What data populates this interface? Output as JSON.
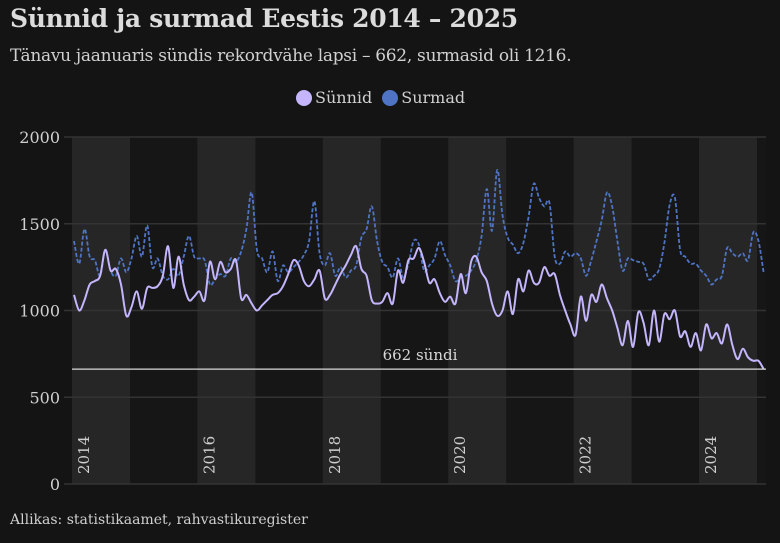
{
  "title": "Sünnid ja surmad Eestis 2014 – 2025",
  "subtitle": "Tänavu jaanuaris sündis rekordvähe lapsi – 662, surmasid oli 1216.",
  "source": "Allikas: statistikaamet, rahvastikuregister",
  "colors": {
    "births": "#c4b5fd",
    "deaths": "#4f74c4",
    "background": "#141414",
    "band": "#262626"
  },
  "chart_data": {
    "type": "line",
    "title": "Sünnid ja surmad Eestis 2014 – 2025",
    "xlabel": "",
    "ylabel": "",
    "ylim": [
      0,
      2000
    ],
    "xlim": [
      2014,
      2025.1
    ],
    "yticks": [
      "0",
      "500",
      "1000",
      "1500",
      "2000"
    ],
    "ytick_values": [
      0,
      500,
      1000,
      1500,
      2000
    ],
    "xticks": [
      "2014",
      "2016",
      "2018",
      "2020",
      "2022",
      "2024"
    ],
    "xtick_values": [
      2014,
      2016,
      2018,
      2020,
      2022,
      2024
    ],
    "legend": {
      "position": "top-center",
      "entries": [
        "Sünnid",
        "Surmad"
      ]
    },
    "annotation": {
      "text": "662 sündi",
      "value": 662
    },
    "x_start": "2014-01",
    "frequency": "monthly",
    "series": [
      {
        "name": "Sünnid",
        "style": "solid",
        "values": [
          1090,
          1000,
          1060,
          1150,
          1170,
          1200,
          1350,
          1230,
          1240,
          1150,
          970,
          1020,
          1110,
          1010,
          1130,
          1130,
          1140,
          1200,
          1370,
          1130,
          1310,
          1150,
          1060,
          1080,
          1110,
          1060,
          1280,
          1180,
          1280,
          1220,
          1240,
          1290,
          1070,
          1090,
          1040,
          1000,
          1030,
          1060,
          1090,
          1100,
          1140,
          1210,
          1290,
          1260,
          1170,
          1140,
          1180,
          1230,
          1070,
          1090,
          1150,
          1210,
          1260,
          1320,
          1370,
          1240,
          1200,
          1060,
          1040,
          1050,
          1100,
          1040,
          1230,
          1160,
          1290,
          1300,
          1360,
          1280,
          1160,
          1180,
          1100,
          1050,
          1080,
          1040,
          1210,
          1100,
          1280,
          1310,
          1220,
          1170,
          1040,
          970,
          1000,
          1110,
          980,
          1180,
          1110,
          1230,
          1160,
          1160,
          1250,
          1200,
          1210,
          1090,
          1000,
          920,
          860,
          1080,
          940,
          1090,
          1050,
          1150,
          1070,
          1000,
          900,
          800,
          940,
          790,
          990,
          930,
          800,
          1000,
          820,
          980,
          950,
          1000,
          850,
          880,
          790,
          870,
          770,
          920,
          840,
          870,
          810,
          920,
          800,
          720,
          780,
          730,
          710,
          710,
          662
        ]
      },
      {
        "name": "Surmad",
        "style": "dashed",
        "values": [
          1400,
          1270,
          1470,
          1310,
          1290,
          1200,
          1350,
          1230,
          1200,
          1300,
          1220,
          1300,
          1430,
          1310,
          1490,
          1250,
          1300,
          1200,
          1180,
          1240,
          1200,
          1310,
          1430,
          1310,
          1300,
          1290,
          1150,
          1180,
          1210,
          1200,
          1300,
          1280,
          1340,
          1470,
          1680,
          1350,
          1300,
          1220,
          1340,
          1170,
          1260,
          1220,
          1250,
          1280,
          1320,
          1400,
          1630,
          1330,
          1260,
          1330,
          1200,
          1250,
          1190,
          1230,
          1260,
          1420,
          1470,
          1600,
          1400,
          1280,
          1250,
          1190,
          1300,
          1190,
          1270,
          1400,
          1380,
          1230,
          1260,
          1300,
          1400,
          1320,
          1260,
          1170,
          1190,
          1200,
          1230,
          1290,
          1430,
          1700,
          1460,
          1810,
          1550,
          1420,
          1380,
          1330,
          1390,
          1540,
          1730,
          1650,
          1600,
          1620,
          1310,
          1270,
          1340,
          1310,
          1330,
          1300,
          1200,
          1290,
          1400,
          1520,
          1680,
          1600,
          1400,
          1230,
          1300,
          1290,
          1280,
          1270,
          1180,
          1200,
          1240,
          1390,
          1610,
          1650,
          1350,
          1310,
          1270,
          1270,
          1230,
          1200,
          1150,
          1180,
          1200,
          1360,
          1330,
          1310,
          1330,
          1290,
          1450,
          1400,
          1216
        ]
      }
    ]
  }
}
